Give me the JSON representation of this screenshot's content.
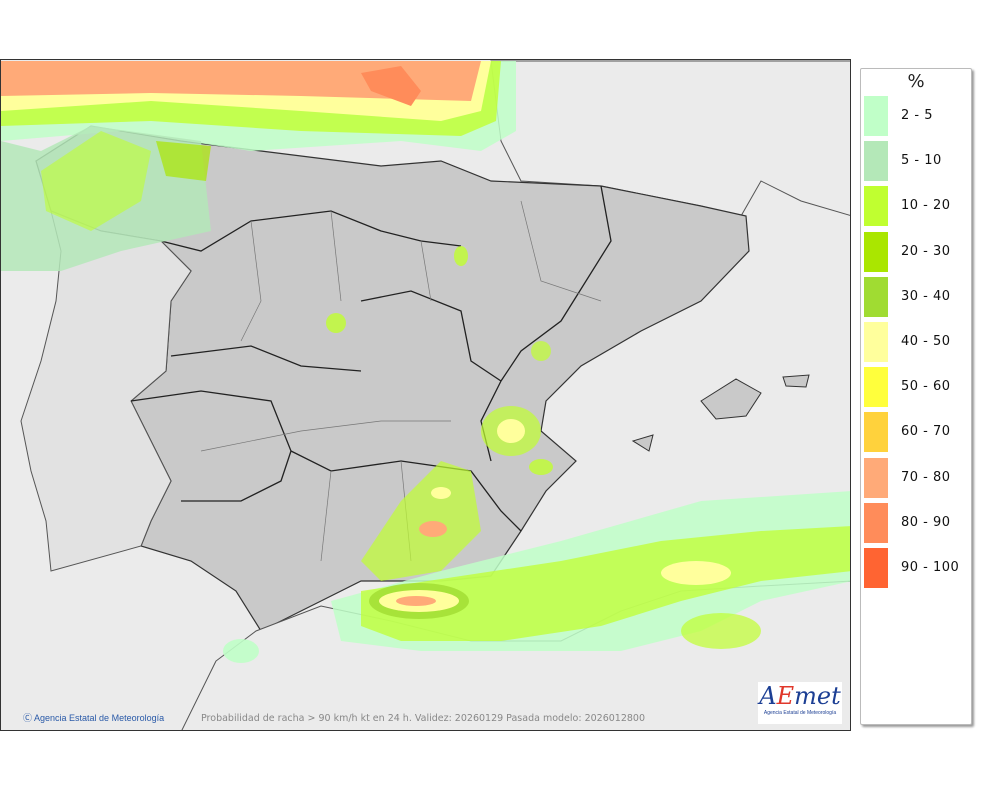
{
  "map": {
    "credit": "Agencia Estatal de Meteorología",
    "caption": "Probabilidad de racha > 90 km/h kt en 24 h. Validez: 20260129 Pasada modelo: 2026012800",
    "logo": {
      "text": "AEmet",
      "subtitle": "Agencia Estatal de Meteorología"
    }
  },
  "legend": {
    "unit": "%",
    "items": [
      {
        "label": "2 - 5",
        "color": "#c0ffc8"
      },
      {
        "label": "5 - 10",
        "color": "#b4e8b8"
      },
      {
        "label": "10 - 20",
        "color": "#c0ff30"
      },
      {
        "label": "20 - 30",
        "color": "#aae600"
      },
      {
        "label": "30 - 40",
        "color": "#a0dc32"
      },
      {
        "label": "40 - 50",
        "color": "#ffff9c"
      },
      {
        "label": "50 - 60",
        "color": "#ffff3c"
      },
      {
        "label": "60 - 70",
        "color": "#ffd23c"
      },
      {
        "label": "70 - 80",
        "color": "#ffaa78"
      },
      {
        "label": "80 - 90",
        "color": "#ff8c5a"
      },
      {
        "label": "90 - 100",
        "color": "#ff6432"
      }
    ]
  }
}
